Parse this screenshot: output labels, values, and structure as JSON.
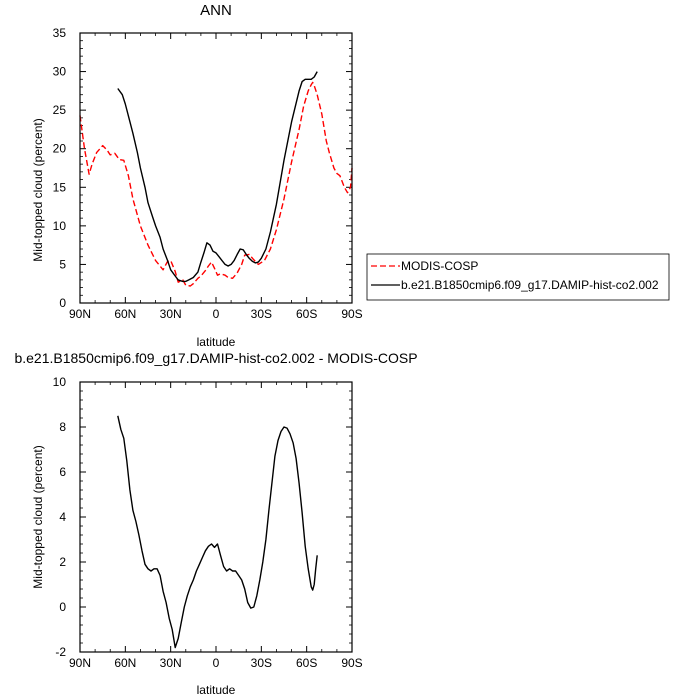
{
  "chart_data": [
    {
      "type": "line",
      "title": "ANN",
      "xlabel": "latitude",
      "ylabel": "Mid-topped cloud (percent)",
      "xlim": [
        90,
        -90
      ],
      "ylim": [
        0,
        35
      ],
      "x_tick_values": [
        90,
        60,
        30,
        0,
        -30,
        -60,
        -90
      ],
      "x_tick_labels": [
        "90N",
        "60N",
        "30N",
        "0",
        "30S",
        "60S",
        "90S"
      ],
      "y_tick_values": [
        0,
        5,
        10,
        15,
        20,
        25,
        30,
        35
      ],
      "y_tick_labels": [
        "0",
        "5",
        "10",
        "15",
        "20",
        "25",
        "30",
        "35"
      ],
      "grid": false,
      "legend_position": "right",
      "series": [
        {
          "name": "MODIS-COSP",
          "color": "#ff0000",
          "dash": "dashed",
          "x": [
            90,
            87,
            84,
            82,
            79,
            75,
            72,
            70,
            67,
            64,
            61,
            58,
            55,
            50,
            45,
            40,
            35,
            32,
            30,
            27,
            25,
            22,
            20,
            17,
            15,
            12,
            10,
            7,
            5,
            3,
            1,
            -1,
            -3,
            -6,
            -8,
            -11,
            -14,
            -17,
            -19,
            -22,
            -25,
            -28,
            -32,
            -36,
            -40,
            -45,
            -50,
            -55,
            -58,
            -61,
            -63,
            -64,
            -65,
            -67,
            -70,
            -73,
            -75,
            -78,
            -80,
            -82,
            -85,
            -87,
            -89,
            -90
          ],
          "y": [
            24.3,
            20,
            16.7,
            18,
            19.5,
            20.4,
            19.8,
            19.2,
            19.4,
            18.6,
            18.5,
            16.5,
            13.5,
            10,
            7.5,
            5.5,
            4.3,
            5.4,
            5.5,
            4.1,
            2.7,
            3,
            2.3,
            2.2,
            2.5,
            3.2,
            3.5,
            4.2,
            4.8,
            5.3,
            4.5,
            3.6,
            3.8,
            3.6,
            3.3,
            3.2,
            3.9,
            5,
            6.2,
            6.3,
            5.6,
            5,
            5.5,
            7,
            9.5,
            13.5,
            18.3,
            22.5,
            25.5,
            27.5,
            28.3,
            28.6,
            28.2,
            27,
            24.5,
            21,
            19.5,
            17.5,
            16.8,
            16.5,
            15,
            14.3,
            15,
            17.5
          ]
        },
        {
          "name": "b.e21.B1850cmip6.f09_g17.DAMIP-hist-co2.002",
          "color": "#000000",
          "dash": "solid",
          "x": [
            65,
            62,
            60,
            57,
            55,
            52,
            50,
            47,
            45,
            42,
            40,
            37,
            35,
            32,
            30,
            27,
            25,
            22,
            20,
            18,
            15,
            12,
            10,
            8,
            6,
            4,
            2,
            0,
            -2,
            -4,
            -6,
            -8,
            -10,
            -12,
            -14,
            -16,
            -18,
            -20,
            -22,
            -24,
            -26,
            -28,
            -30,
            -33,
            -36,
            -40,
            -45,
            -50,
            -55,
            -57,
            -59,
            -61,
            -63,
            -65,
            -67
          ],
          "y": [
            27.8,
            27,
            25.8,
            23.5,
            22,
            19.5,
            17.5,
            15,
            13,
            11.2,
            10,
            8.5,
            7,
            5.5,
            4.3,
            3.5,
            3,
            2.8,
            2.8,
            3,
            3.3,
            4,
            5.3,
            6.5,
            7.8,
            7.5,
            6.7,
            6.5,
            6,
            5.5,
            5,
            4.8,
            5,
            5.5,
            6.3,
            7,
            6.9,
            6.3,
            5.8,
            5.4,
            5.2,
            5.3,
            5.8,
            7,
            9.2,
            12.8,
            18.5,
            23.5,
            27.5,
            28.7,
            29,
            29,
            29,
            29.3,
            30
          ]
        }
      ]
    },
    {
      "type": "line",
      "title": "b.e21.B1850cmip6.f09_g17.DAMIP-hist-co2.002 - MODIS-COSP",
      "xlabel": "latitude",
      "ylabel": "Mid-topped cloud (percent)",
      "xlim": [
        90,
        -90
      ],
      "ylim": [
        -2,
        10
      ],
      "x_tick_values": [
        90,
        60,
        30,
        0,
        -30,
        -60,
        -90
      ],
      "x_tick_labels": [
        "90N",
        "60N",
        "30N",
        "0",
        "30S",
        "60S",
        "90S"
      ],
      "y_tick_values": [
        -2,
        0,
        2,
        4,
        6,
        8,
        10
      ],
      "y_tick_labels": [
        "-2",
        "0",
        "2",
        "4",
        "6",
        "8",
        "10"
      ],
      "grid": false,
      "series": [
        {
          "color": "#000000",
          "dash": "solid",
          "x": [
            65,
            63,
            61,
            59,
            57,
            55,
            53,
            51,
            49,
            47,
            45,
            43,
            41,
            39,
            37,
            35,
            33,
            31,
            29,
            27,
            25,
            23,
            21,
            19,
            17,
            15,
            13,
            11,
            9,
            7,
            5,
            3,
            1,
            -1,
            -3,
            -5,
            -7,
            -9,
            -11,
            -13,
            -15,
            -17,
            -19,
            -21,
            -23,
            -25,
            -27,
            -29,
            -31,
            -33,
            -35,
            -37,
            -39,
            -41,
            -43,
            -45,
            -47,
            -49,
            -51,
            -53,
            -55,
            -57,
            -59,
            -61,
            -63,
            -64,
            -65,
            -66,
            -67
          ],
          "y": [
            8.5,
            7.9,
            7.5,
            6.5,
            5.2,
            4.3,
            3.8,
            3.2,
            2.5,
            1.9,
            1.7,
            1.6,
            1.7,
            1.7,
            1.4,
            0.7,
            0.2,
            -0.5,
            -1,
            -1.8,
            -1.4,
            -0.7,
            0,
            0.5,
            0.9,
            1.2,
            1.6,
            1.9,
            2.2,
            2.5,
            2.7,
            2.8,
            2.65,
            2.8,
            2.3,
            1.8,
            1.6,
            1.7,
            1.6,
            1.6,
            1.4,
            1.2,
            0.8,
            0.2,
            -0.05,
            0,
            0.5,
            1.2,
            2,
            3,
            4.3,
            5.5,
            6.7,
            7.4,
            7.8,
            8,
            7.95,
            7.7,
            7.3,
            6.6,
            5.5,
            4.2,
            2.7,
            1.7,
            0.9,
            0.75,
            1,
            1.7,
            2.3
          ]
        }
      ]
    }
  ]
}
